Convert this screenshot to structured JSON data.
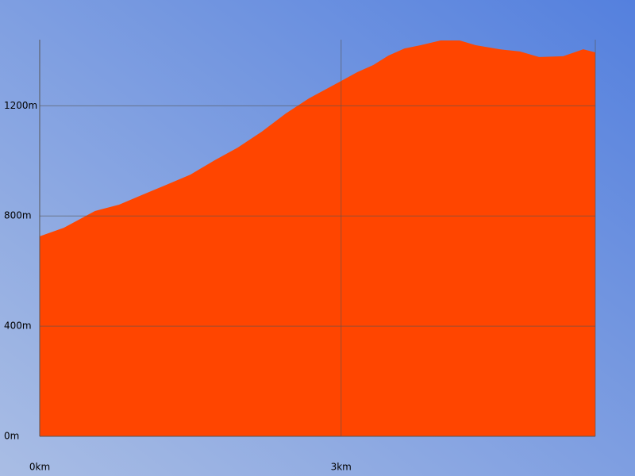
{
  "chart_data": {
    "type": "area",
    "x": [
      0,
      0.24,
      0.55,
      0.79,
      1.03,
      1.26,
      1.5,
      1.74,
      1.97,
      2.21,
      2.45,
      2.68,
      3.0,
      3.16,
      3.32,
      3.47,
      3.63,
      3.79,
      3.99,
      4.18,
      4.34,
      4.58,
      4.78,
      4.97,
      5.21,
      5.41,
      5.53
    ],
    "values": [
      726,
      757,
      818,
      841,
      878,
      913,
      950,
      1002,
      1048,
      1106,
      1172,
      1227,
      1290,
      1322,
      1348,
      1382,
      1408,
      1420,
      1437,
      1437,
      1420,
      1405,
      1397,
      1377,
      1380,
      1405,
      1394
    ],
    "color": "#ff4500",
    "xlim": [
      0,
      5.53
    ],
    "ylim": [
      0,
      1440
    ],
    "xticks": [
      {
        "value": 0,
        "label": "0km"
      },
      {
        "value": 3,
        "label": "3km"
      }
    ],
    "yticks": [
      {
        "value": 0,
        "label": "0m"
      },
      {
        "value": 400,
        "label": "400m"
      },
      {
        "value": 800,
        "label": "800m"
      },
      {
        "value": 1200,
        "label": "1200m"
      }
    ],
    "grid": true
  }
}
